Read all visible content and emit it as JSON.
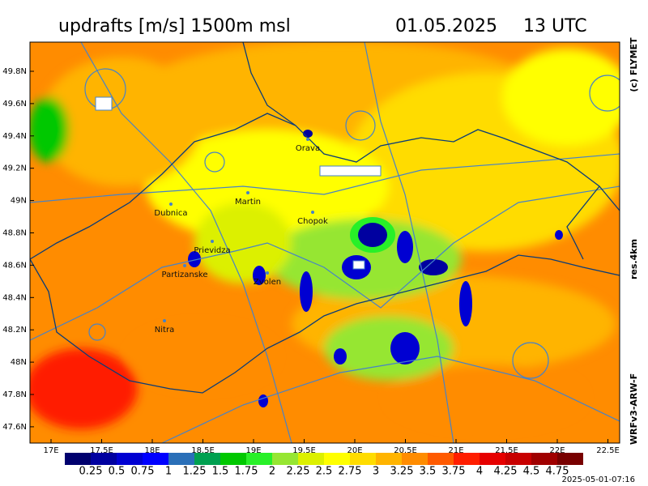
{
  "header": {
    "title": "updrafts [m/s] 1500m msl",
    "date": "01.05.2025",
    "time": "13 UTC"
  },
  "side": {
    "copyright": "(c) FLYMET",
    "resolution": "res.4km",
    "model": "WRFv3-ARW-F"
  },
  "map": {
    "lat_labels": [
      "49.8N",
      "49.6N",
      "49.4N",
      "49.2N",
      "49N",
      "48.8N",
      "48.6N",
      "48.4N",
      "48.2N",
      "48N",
      "47.8N",
      "47.6N"
    ],
    "lon_labels": [
      "17E",
      "17.5E",
      "18E",
      "18.5E",
      "19E",
      "19.5E",
      "20E",
      "20.5E",
      "21E",
      "21.5E",
      "22E",
      "22.5E"
    ],
    "places": [
      "Orava",
      "Dubnica",
      "Martin",
      "Chopok",
      "Prievidza",
      "Partizanske",
      "Zvolen",
      "Nitra"
    ]
  },
  "legend": {
    "labels": [
      "0.25",
      "0.5",
      "0.75",
      "1",
      "1.25",
      "1.5",
      "1.75",
      "2",
      "2.25",
      "2.5",
      "2.75",
      "3",
      "3.25",
      "3.5",
      "3.75",
      "4",
      "4.25",
      "4.5",
      "4.75"
    ],
    "colors": [
      "#00006e",
      "#0000a0",
      "#0000d2",
      "#0000ff",
      "#2a6fb8",
      "#00a050",
      "#00c800",
      "#28f028",
      "#96e632",
      "#dcf000",
      "#ffff00",
      "#ffdc00",
      "#ffb400",
      "#ff8c00",
      "#ff5a00",
      "#ff1e00",
      "#e60000",
      "#c80000",
      "#a00000",
      "#780000"
    ]
  },
  "timestamp": "2025-05-01-07:16"
}
